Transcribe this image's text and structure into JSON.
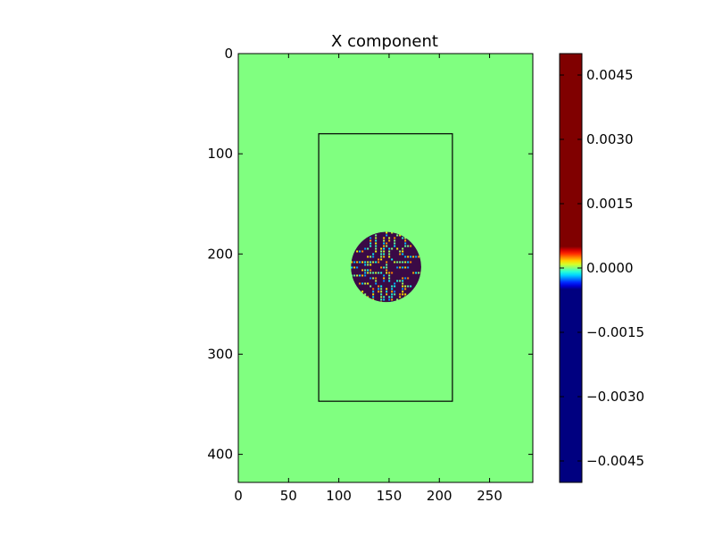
{
  "chart_data": {
    "type": "heatmap",
    "title": "X component",
    "xlabel": "",
    "ylabel": "",
    "xlim": [
      0,
      293
    ],
    "ylim": [
      428,
      0
    ],
    "x_ticks": [
      0,
      50,
      100,
      150,
      200,
      250
    ],
    "y_ticks": [
      0,
      100,
      200,
      300,
      400
    ],
    "background_value": 0.0,
    "rectangle": {
      "x0": 80,
      "y0": 80,
      "x1": 213,
      "y1": 347,
      "color": "#000000"
    },
    "disc": {
      "cx": 147,
      "cy": 213,
      "r": 35,
      "pattern": "high-frequency oscillation",
      "dominant_color": "#3a0a46"
    },
    "colorbar": {
      "colormap": "jet",
      "vmin": -0.005,
      "vmax": 0.005,
      "tick_values": [
        0.0045,
        0.003,
        0.0015,
        0.0,
        -0.0015,
        -0.003,
        -0.0045
      ],
      "tick_labels": [
        "0.0045",
        "0.0030",
        "0.0015",
        "0.0000",
        "−0.0015",
        "−0.0030",
        "−0.0045"
      ],
      "saturation_fraction": 0.1
    },
    "colors": {
      "field_background": "#80ff80",
      "high": "#800000",
      "low": "#000080"
    }
  }
}
